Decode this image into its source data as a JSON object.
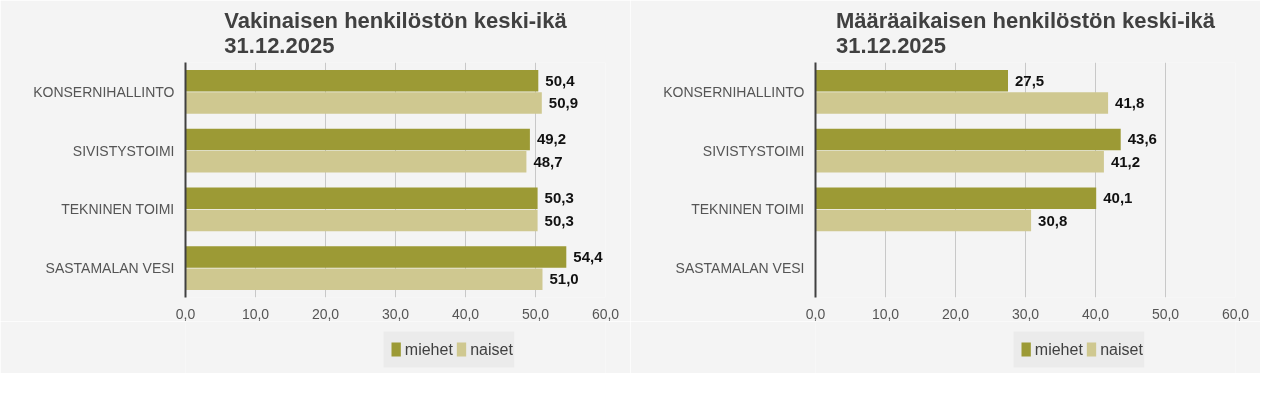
{
  "chart_data": [
    {
      "type": "bar",
      "orientation": "horizontal",
      "title": "Vakinaisen henkilöstön keski-ikä\n31.12.2025",
      "categories": [
        "KONSERNIHALLINTO",
        "SIVISTYSTOIMI",
        "TEKNINEN TOIMI",
        "SASTAMALAN VESI"
      ],
      "series": [
        {
          "name": "miehet",
          "color": "#9c9a35",
          "values": [
            50.4,
            49.2,
            50.3,
            54.4
          ],
          "value_labels": [
            "50,4",
            "49,2",
            "50,3",
            "54,4"
          ]
        },
        {
          "name": "naiset",
          "color": "#cfc890",
          "values": [
            50.9,
            48.7,
            50.3,
            51.0
          ],
          "value_labels": [
            "50,9",
            "48,7",
            "50,3",
            "51,0"
          ]
        }
      ],
      "xlim": [
        0,
        60
      ],
      "xticks": [
        {
          "value": 0,
          "label": "0,0"
        },
        {
          "value": 10,
          "label": "10,0"
        },
        {
          "value": 20,
          "label": "20,0"
        },
        {
          "value": 30,
          "label": "30,0"
        },
        {
          "value": 40,
          "label": "40,0"
        },
        {
          "value": 50,
          "label": "50,0"
        },
        {
          "value": 60,
          "label": "60,0"
        }
      ],
      "grid": "x",
      "legend": "bottom"
    },
    {
      "type": "bar",
      "orientation": "horizontal",
      "title": "Määräaikaisen henkilöstön keski-ikä\n31.12.2025",
      "categories": [
        "KONSERNIHALLINTO",
        "SIVISTYSTOIMI",
        "TEKNINEN TOIMI",
        "SASTAMALAN VESI"
      ],
      "series": [
        {
          "name": "miehet",
          "color": "#9c9a35",
          "values": [
            27.5,
            43.6,
            40.1,
            null
          ],
          "value_labels": [
            "27,5",
            "43,6",
            "40,1",
            null
          ]
        },
        {
          "name": "naiset",
          "color": "#cfc890",
          "values": [
            41.8,
            41.2,
            30.8,
            null
          ],
          "value_labels": [
            "41,8",
            "41,2",
            "30,8",
            null
          ]
        }
      ],
      "xlim": [
        0,
        60
      ],
      "xticks": [
        {
          "value": 0,
          "label": "0,0"
        },
        {
          "value": 10,
          "label": "10,0"
        },
        {
          "value": 20,
          "label": "20,0"
        },
        {
          "value": 30,
          "label": "30,0"
        },
        {
          "value": 40,
          "label": "40,0"
        },
        {
          "value": 50,
          "label": "50,0"
        },
        {
          "value": 60,
          "label": "60,0"
        }
      ],
      "grid": "x",
      "legend": "bottom"
    }
  ]
}
